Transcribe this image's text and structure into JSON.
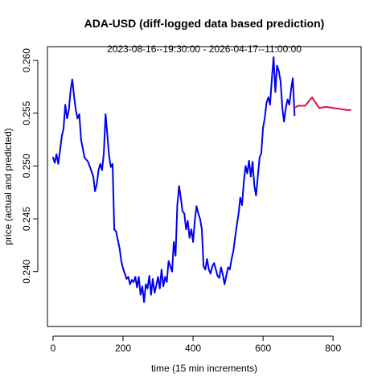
{
  "chart_data": {
    "type": "line",
    "title": "ADA-USD (diff-logged data based prediction)",
    "subtitle": "2023-08-16--19:30:00  -  2026-04-17--11:00:00",
    "xlabel": "time (15 min increments)",
    "ylabel": "price (actual and predicted)",
    "xlim": [
      -16,
      880
    ],
    "ylim": [
      0.2348,
      0.2613
    ],
    "xticks": [
      0,
      200,
      400,
      600,
      800
    ],
    "yticks": [
      0.24,
      0.245,
      0.25,
      0.255,
      0.26
    ],
    "xtick_labels": [
      "0",
      "200",
      "400",
      "600",
      "800"
    ],
    "ytick_labels": [
      "0.240",
      "0.245",
      "0.250",
      "0.255",
      "0.260"
    ],
    "grid": false,
    "series": [
      {
        "color": "#0000ee",
        "x": [
          0,
          5,
          10,
          15,
          20,
          25,
          30,
          35,
          40,
          45,
          50,
          55,
          60,
          65,
          70,
          75,
          80,
          90,
          100,
          110,
          115,
          120,
          125,
          130,
          135,
          140,
          145,
          150,
          155,
          160,
          165,
          170,
          175,
          180,
          185,
          190,
          195,
          200,
          205,
          210,
          215,
          220,
          225,
          230,
          235,
          240,
          245,
          250,
          255,
          260,
          265,
          270,
          275,
          280,
          285,
          290,
          295,
          300,
          305,
          310,
          315,
          320,
          325,
          330,
          335,
          340,
          345,
          350,
          355,
          360,
          365,
          370,
          375,
          380,
          385,
          390,
          395,
          400,
          405,
          410,
          415,
          420,
          425,
          430,
          435,
          440,
          445,
          450,
          455,
          460,
          465,
          470,
          475,
          480,
          485,
          490,
          495,
          500,
          505,
          510,
          515,
          520,
          525,
          530,
          535,
          540,
          545,
          550,
          555,
          560,
          565,
          570,
          575,
          580,
          585,
          590,
          595,
          600,
          605,
          610,
          615,
          620,
          625,
          630,
          635,
          640,
          645,
          650,
          655,
          660,
          665,
          670,
          675,
          680,
          685,
          690
        ],
        "y": [
          0.2508,
          0.2503,
          0.2511,
          0.2502,
          0.2515,
          0.2528,
          0.2535,
          0.2558,
          0.2545,
          0.2553,
          0.2571,
          0.2582,
          0.2566,
          0.2553,
          0.2545,
          0.2549,
          0.2525,
          0.2508,
          0.2504,
          0.2495,
          0.249,
          0.2476,
          0.2483,
          0.2496,
          0.2502,
          0.2496,
          0.2512,
          0.2549,
          0.253,
          0.251,
          0.2499,
          0.2502,
          0.244,
          0.2438,
          0.243,
          0.2422,
          0.241,
          0.2403,
          0.2398,
          0.2393,
          0.2395,
          0.2388,
          0.2392,
          0.239,
          0.2395,
          0.2385,
          0.2395,
          0.2378,
          0.2386,
          0.2371,
          0.2388,
          0.2384,
          0.2396,
          0.2378,
          0.2393,
          0.238,
          0.2387,
          0.2395,
          0.2384,
          0.2402,
          0.2386,
          0.2395,
          0.239,
          0.241,
          0.2405,
          0.24,
          0.2428,
          0.2415,
          0.2463,
          0.2481,
          0.247,
          0.2457,
          0.2455,
          0.244,
          0.2448,
          0.2432,
          0.244,
          0.2428,
          0.2448,
          0.2462,
          0.2455,
          0.245,
          0.244,
          0.2405,
          0.2402,
          0.2412,
          0.2402,
          0.2398,
          0.2405,
          0.2408,
          0.2402,
          0.2396,
          0.2394,
          0.2404,
          0.2397,
          0.2388,
          0.2396,
          0.2404,
          0.2402,
          0.2412,
          0.2419,
          0.2432,
          0.2444,
          0.2455,
          0.247,
          0.2463,
          0.2485,
          0.25,
          0.2493,
          0.2505,
          0.249,
          0.2504,
          0.2482,
          0.2472,
          0.249,
          0.2508,
          0.2512,
          0.2536,
          0.2546,
          0.256,
          0.2565,
          0.2558,
          0.2582,
          0.2603,
          0.257,
          0.2595,
          0.259,
          0.258,
          0.2555,
          0.2542,
          0.2555,
          0.2563,
          0.2558,
          0.2572,
          0.2583,
          0.2548
        ]
      },
      {
        "color": "#dd1144",
        "x": [
          690,
          700,
          710,
          720,
          740,
          760,
          780,
          800,
          820,
          840,
          850
        ],
        "y": [
          0.2555,
          0.2557,
          0.2557,
          0.2557,
          0.2565,
          0.2555,
          0.2556,
          0.2555,
          0.2554,
          0.2553,
          0.2553
        ]
      }
    ]
  }
}
